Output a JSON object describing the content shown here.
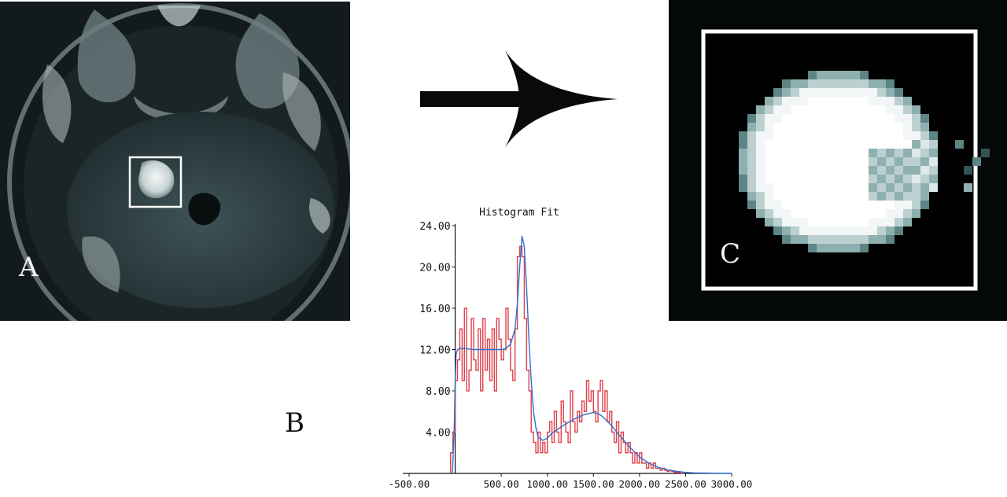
{
  "figure": {
    "panel_a_label": "A",
    "panel_b_label": "B",
    "panel_c_label": "C"
  },
  "chart_data": {
    "type": "line",
    "title": "Histogram Fit",
    "xlabel": "",
    "ylabel": "",
    "xlim": [
      -500,
      3000
    ],
    "ylim": [
      0,
      24
    ],
    "x_ticks": [
      -500,
      500,
      1000,
      1500,
      2000,
      2500,
      3000
    ],
    "x_tick_labels": [
      "-500.00",
      "500.00",
      "1000.00",
      "1500.00",
      "2000.00",
      "2500.00",
      "3000.00"
    ],
    "y_ticks": [
      4,
      8,
      12,
      16,
      20,
      24
    ],
    "y_tick_labels": [
      "4.00",
      "8.00",
      "12.00",
      "16.00",
      "20.00",
      "24.00"
    ],
    "grid": false,
    "series": [
      {
        "color": "#e0404a",
        "style": "step",
        "x": [
          -50,
          -25,
          0,
          25,
          50,
          75,
          100,
          125,
          150,
          175,
          200,
          225,
          250,
          275,
          300,
          325,
          350,
          375,
          400,
          425,
          450,
          475,
          500,
          525,
          550,
          575,
          600,
          625,
          650,
          675,
          700,
          725,
          750,
          775,
          800,
          825,
          850,
          875,
          900,
          925,
          950,
          975,
          1000,
          1025,
          1050,
          1075,
          1100,
          1125,
          1150,
          1175,
          1200,
          1225,
          1250,
          1275,
          1300,
          1325,
          1350,
          1375,
          1400,
          1425,
          1450,
          1475,
          1500,
          1525,
          1550,
          1575,
          1600,
          1625,
          1650,
          1675,
          1700,
          1725,
          1750,
          1775,
          1800,
          1825,
          1850,
          1875,
          1900,
          1925,
          1950,
          1975,
          2000,
          2025,
          2050,
          2075,
          2100,
          2125,
          2150,
          2175,
          2200,
          2225,
          2250,
          2275,
          2300,
          2325,
          2350,
          2375,
          2400,
          2425,
          2450
        ],
        "values": [
          2,
          4,
          9,
          11,
          14,
          9,
          16,
          8,
          10,
          15,
          11,
          10,
          14,
          8,
          15,
          10,
          13,
          9,
          14,
          8,
          15,
          13,
          11,
          12,
          16,
          13,
          10,
          9,
          14,
          21,
          22,
          21,
          15,
          10,
          8,
          4,
          3,
          2,
          4,
          2,
          3,
          2,
          4,
          5,
          3,
          6,
          4,
          3,
          7,
          5,
          4,
          3,
          8,
          5,
          4,
          6,
          5,
          7,
          6,
          9,
          7,
          8,
          6,
          5,
          8,
          9,
          6,
          8,
          5,
          6,
          4,
          3,
          5,
          2,
          4,
          3,
          2,
          3,
          2,
          1,
          2,
          1,
          2,
          1,
          1,
          0.5,
          1,
          0.5,
          1,
          0.5,
          0.5,
          0.3,
          0.5,
          0.3,
          0.2,
          0.3,
          0.2,
          0.1,
          0.1,
          0.1,
          0
        ]
      },
      {
        "color": "#2e6fd0",
        "style": "line",
        "x": [
          -30,
          -10,
          0,
          10,
          25,
          50,
          100,
          200,
          300,
          400,
          500,
          550,
          600,
          650,
          675,
          700,
          725,
          750,
          775,
          800,
          825,
          850,
          875,
          900,
          950,
          1000,
          1050,
          1100,
          1200,
          1300,
          1400,
          1500,
          1550,
          1600,
          1700,
          1800,
          1900,
          2000,
          2100,
          2200,
          2300,
          2400,
          2500,
          2600,
          2800,
          3000
        ],
        "values": [
          0,
          4.5,
          9,
          11.5,
          12,
          12.1,
          12.1,
          12,
          12,
          12,
          12,
          12.1,
          12.5,
          14,
          16.5,
          20,
          23,
          22,
          18,
          13,
          9,
          6,
          4.5,
          3.5,
          3.2,
          3.4,
          3.9,
          4.2,
          4.8,
          5.3,
          5.7,
          5.9,
          5.8,
          5.5,
          4.6,
          3.5,
          2.5,
          1.6,
          1,
          0.6,
          0.35,
          0.2,
          0.1,
          0.05,
          0.02,
          0
        ]
      }
    ]
  }
}
